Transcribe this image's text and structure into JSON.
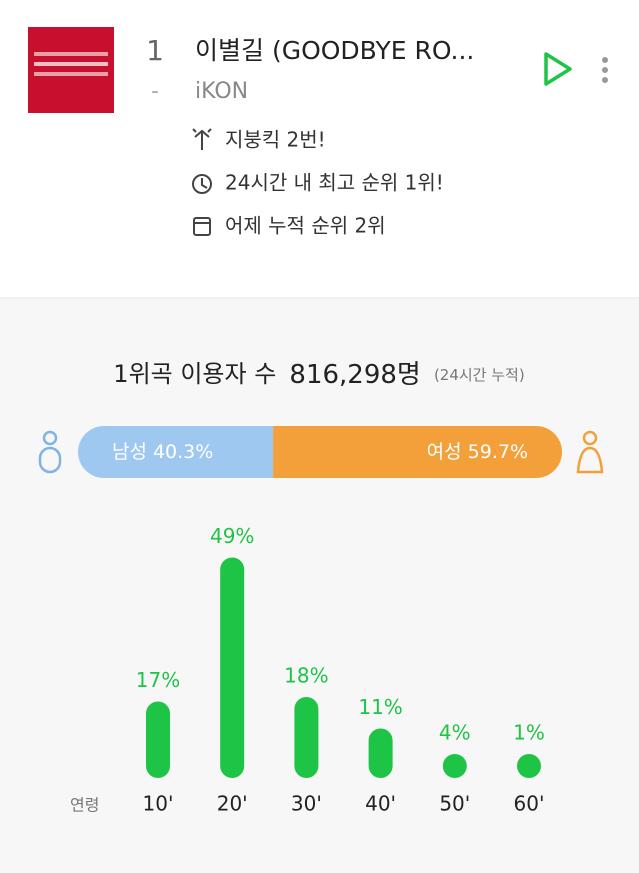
{
  "song": {
    "rank": "1",
    "change": "-",
    "title": "이별길 (GOODBYE RO...",
    "artist": "iKON",
    "info": [
      "지붕킥 2번!",
      "24시간 내 최고 순위 1위!",
      "어제 누적 순위 2위"
    ]
  },
  "stats": {
    "label": "1위곡 이용자 수",
    "count": "816,298명",
    "note": "(24시간 누적)"
  },
  "chart_data": [
    {
      "type": "stacked_bar",
      "series": [
        {
          "name": "남성",
          "color": "#9ec8f0",
          "values": [
            40.3
          ],
          "value_labels": [
            "40.3%"
          ]
        },
        {
          "name": "여성",
          "color": "#f4a03a",
          "values": [
            59.7
          ],
          "value_labels": [
            "59.7%"
          ]
        }
      ]
    },
    {
      "type": "bar",
      "x_label": "연령",
      "color": "#1ec445",
      "categories": [
        "10'",
        "20'",
        "30'",
        "40'",
        "50'",
        "60'"
      ],
      "values": [
        17,
        49,
        18,
        11,
        4,
        1
      ],
      "value_labels": [
        "17%",
        "49%",
        "18%",
        "11%",
        "4%",
        "1%"
      ]
    }
  ]
}
